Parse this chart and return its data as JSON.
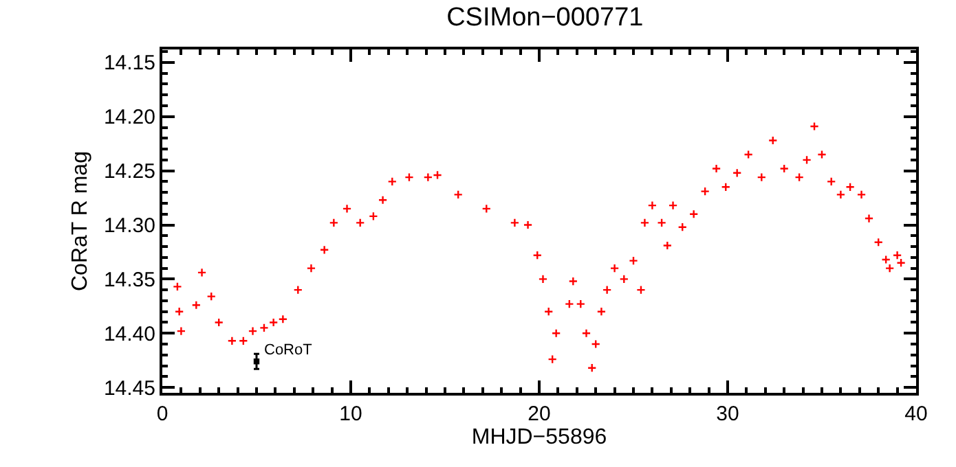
{
  "chart_data": {
    "type": "scatter",
    "title": "CSIMon−000771",
    "xlabel": "MHJD−55896",
    "ylabel": "CoRaT R mag",
    "xlim": [
      0,
      40
    ],
    "xticks": [
      0,
      10,
      20,
      30,
      40
    ],
    "ylim": [
      14.455,
      14.138
    ],
    "yticks": [
      {
        "value": 14.15,
        "label": "14.15"
      },
      {
        "value": 14.2,
        "label": "14.20"
      },
      {
        "value": 14.25,
        "label": "14.25"
      },
      {
        "value": 14.3,
        "label": "14.30"
      },
      {
        "value": 14.35,
        "label": "14.35"
      },
      {
        "value": 14.4,
        "label": "14.40"
      },
      {
        "value": 14.45,
        "label": "14.45"
      }
    ],
    "marker": "cross",
    "series": [
      {
        "color": "#ff0000",
        "x": [
          0.8,
          0.9,
          1.0,
          1.8,
          2.1,
          2.6,
          3.0,
          3.7,
          4.3,
          4.8,
          5.4,
          5.9,
          6.4,
          7.2,
          7.9,
          8.6,
          9.1,
          9.8,
          10.5,
          11.2,
          11.7,
          12.2,
          13.1,
          14.1,
          14.6,
          15.7,
          17.2,
          18.7,
          19.4,
          19.9,
          20.2,
          20.5,
          20.7,
          20.9,
          21.6,
          21.8,
          22.2,
          22.5,
          22.8,
          23.0,
          23.3,
          23.6,
          24.0,
          24.5,
          25.0,
          25.4,
          25.6,
          26.0,
          26.5,
          26.8,
          27.1,
          27.6,
          28.2,
          28.8,
          29.4,
          29.9,
          30.5,
          31.1,
          31.8,
          32.4,
          33.0,
          33.8,
          34.2,
          34.6,
          35.0,
          35.5,
          36.0,
          36.5,
          37.1,
          37.5,
          38.0,
          38.4,
          38.6,
          39.0,
          39.2
        ],
        "values": [
          14.357,
          14.38,
          14.398,
          14.374,
          14.344,
          14.366,
          14.39,
          14.407,
          14.407,
          14.398,
          14.395,
          14.39,
          14.387,
          14.36,
          14.34,
          14.323,
          14.298,
          14.285,
          14.298,
          14.292,
          14.277,
          14.26,
          14.256,
          14.256,
          14.254,
          14.272,
          14.285,
          14.298,
          14.3,
          14.328,
          14.35,
          14.38,
          14.424,
          14.4,
          14.373,
          14.352,
          14.373,
          14.4,
          14.432,
          14.41,
          14.38,
          14.36,
          14.34,
          14.35,
          14.333,
          14.36,
          14.298,
          14.282,
          14.298,
          14.319,
          14.282,
          14.302,
          14.29,
          14.269,
          14.248,
          14.265,
          14.252,
          14.235,
          14.256,
          14.222,
          14.248,
          14.256,
          14.24,
          14.209,
          14.235,
          14.26,
          14.272,
          14.265,
          14.272,
          14.294,
          14.316,
          14.332,
          14.34,
          14.328,
          14.335
        ]
      },
      {
        "color": "#000000",
        "x": [
          5.0
        ],
        "values": [
          14.426
        ],
        "errors": [
          0.007
        ],
        "marker": "square"
      }
    ],
    "annotations": [
      {
        "text": "CoRoT",
        "x": 5.0,
        "y": 14.426
      }
    ]
  }
}
